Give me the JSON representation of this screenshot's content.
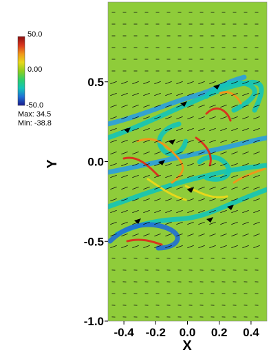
{
  "colorbar": {
    "max_label": "50.0",
    "mid_label": "0.00",
    "min_label": "-50.0",
    "stats_max": "Max:  34.5",
    "stats_min": "Min: -38.8",
    "stops": [
      "#1a1a8c",
      "#1f6fd6",
      "#13c4b8",
      "#2ecf6a",
      "#8fce1e",
      "#e8d81a",
      "#f0961a",
      "#d8351e",
      "#8c1010"
    ]
  },
  "chart_data": {
    "type": "heatmap",
    "xlabel": "X",
    "ylabel": "Y",
    "xlim": [
      -0.5,
      0.5
    ],
    "ylim": [
      -1.0,
      1.0
    ],
    "x_ticks": [
      "-0.4",
      "-0.2",
      "0.0",
      "0.2",
      "0.4"
    ],
    "y_ticks": [
      "0.5",
      "0.0",
      "-0.5",
      "-1.0"
    ],
    "x_tick_values": [
      -0.4,
      -0.2,
      0.0,
      0.2,
      0.4
    ],
    "y_tick_values": [
      0.5,
      0.0,
      -0.5,
      -1.0
    ],
    "color_range": [
      -50.0,
      50.0
    ],
    "field_max": 34.5,
    "field_min": -38.8,
    "background_color": "#8fcc3a",
    "overlay": "velocity vector arrows"
  }
}
